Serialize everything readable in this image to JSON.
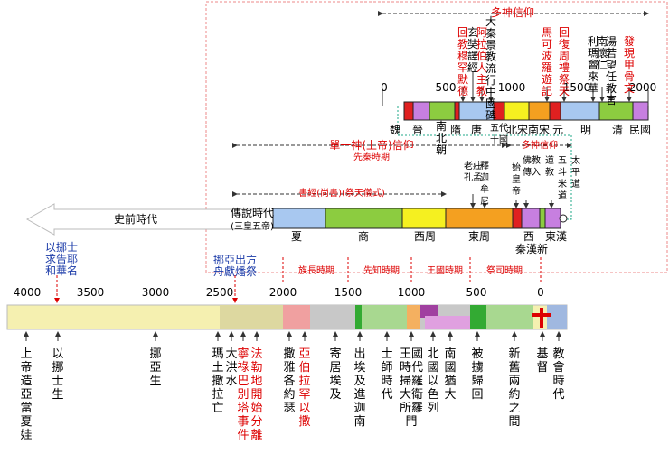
{
  "upper": {
    "title": "多神信仰",
    "ticks": [
      "0",
      "500",
      "1000",
      "1500",
      "2000"
    ],
    "periods": [
      "魏",
      "晉",
      "南北朝",
      "隋",
      "唐",
      "五代十國",
      "北宋",
      "南宋",
      "元",
      "明",
      "清",
      "民國"
    ],
    "events": [
      "回教穆罕默德",
      "玄奘譯經",
      "阿拉伯人主教",
      "大秦景教流行中國碑",
      "馬可波羅遊記",
      "回復周禮祭天",
      "利瑪竇來華",
      "南懷仁",
      "湯若望任教官",
      "發現甲骨文"
    ]
  },
  "middle": {
    "title": "單一神(上帝)信仰",
    "subtitle": "先秦時期",
    "span_label": "書經(尚書)(祭天儀式)",
    "poly_label": "多神信仰",
    "legend_era": "傳說時代",
    "legend_sub": "(三皇五帝)",
    "dynasties": [
      "夏",
      "商",
      "西周",
      "東周",
      "西",
      "秦漢",
      "新",
      "東漢"
    ],
    "events": [
      "老莊孔孟",
      "釋迦牟尼",
      "始皇帝",
      "佛教傳入",
      "道教",
      "五斗米道",
      "太平道"
    ]
  },
  "prehistory": "史前時代",
  "bible_notes": [
    "以挪士求告耶和華名",
    "挪亞出方舟獻燔祭"
  ],
  "periods": [
    "族長時期",
    "先知時期",
    "王國時期",
    "祭司時期"
  ],
  "scale": [
    "4000",
    "3500",
    "3000",
    "2500",
    "2000",
    "1500",
    "1000",
    "500",
    "0"
  ],
  "events": [
    "上帝造亞當夏娃",
    "以挪士生",
    "挪亞生",
    "瑪土撒拉亡",
    "大洪水",
    "寧祿巴別塔事件",
    "法勒地開始分離",
    "撒雅各約瑟",
    "亞伯拉罕以撒",
    "寄居埃及",
    "出埃及進迦南",
    "士師時代",
    "王國時代掃羅大衛所羅門",
    "北國以色列",
    "南國猶大",
    "被擄歸回",
    "新舊兩約之間",
    "基督",
    "教會時代"
  ]
}
